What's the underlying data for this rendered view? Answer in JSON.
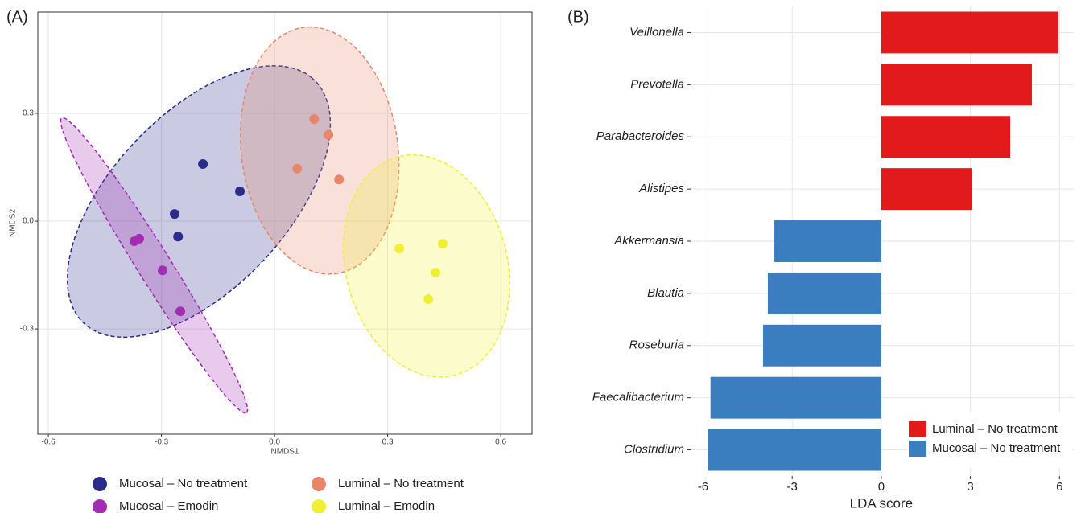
{
  "chart_data": [
    {
      "type": "scatter",
      "panel_label": "(A)",
      "x_label": "NMDS1",
      "y_label": "NMDS2",
      "xlim": [
        -0.628,
        0.683
      ],
      "ylim": [
        -0.593,
        0.582
      ],
      "xticks": [
        -0.6,
        -0.3,
        {
          "value": 0,
          "label": "0.0"
        },
        0.3,
        0.6
      ],
      "yticks": [
        -0.3,
        {
          "value": 0,
          "label": "0.0"
        },
        0.3
      ],
      "grid": true,
      "series": [
        {
          "name": "Mucosal – No treatment",
          "color": "#2b2b8c",
          "x": [
            -0.19,
            -0.092,
            -0.265,
            -0.256
          ],
          "values": [
            0.159,
            0.083,
            0.02,
            -0.043
          ]
        },
        {
          "name": "Mucosal – Emodin",
          "color": "#a22cb3",
          "x": [
            -0.372,
            -0.359,
            -0.297,
            -0.25
          ],
          "values": [
            -0.056,
            -0.049,
            -0.137,
            -0.251
          ]
        },
        {
          "name": "Luminal – No treatment",
          "color": "#e8866a",
          "x": [
            0.105,
            0.143,
            0.06,
            0.171
          ],
          "values": [
            0.284,
            0.24,
            0.146,
            0.116
          ]
        },
        {
          "name": "Luminal – Emodin",
          "color": "#f0f032",
          "x": [
            0.331,
            0.446,
            0.427,
            0.408
          ],
          "values": [
            -0.076,
            -0.063,
            -0.143,
            -0.217
          ]
        }
      ]
    },
    {
      "type": "hbar",
      "panel_label": "(B)",
      "x_label": "LDA score",
      "categories": [
        "Veillonella",
        "Prevotella",
        "Parabacteroides",
        "Alistipes",
        "Akkermansia",
        "Blautia",
        "Roseburia",
        "Faecalibacterium",
        "Clostridium"
      ],
      "xlim": [
        -6.42,
        6.48
      ],
      "xticks": [
        -6,
        -3,
        0,
        3,
        6
      ],
      "grid": true,
      "legend_position": "bottom-right",
      "series": [
        {
          "name": "Luminal – No treatment",
          "color": "#e31a1c",
          "values": [
            5.96,
            5.07,
            4.34,
            3.06,
            null,
            null,
            null,
            null,
            null
          ]
        },
        {
          "name": "Mucosal – No treatment",
          "color": "#3a7ebf",
          "values": [
            null,
            null,
            null,
            null,
            -3.6,
            -3.82,
            -3.98,
            -5.75,
            -5.85
          ]
        }
      ]
    }
  ]
}
